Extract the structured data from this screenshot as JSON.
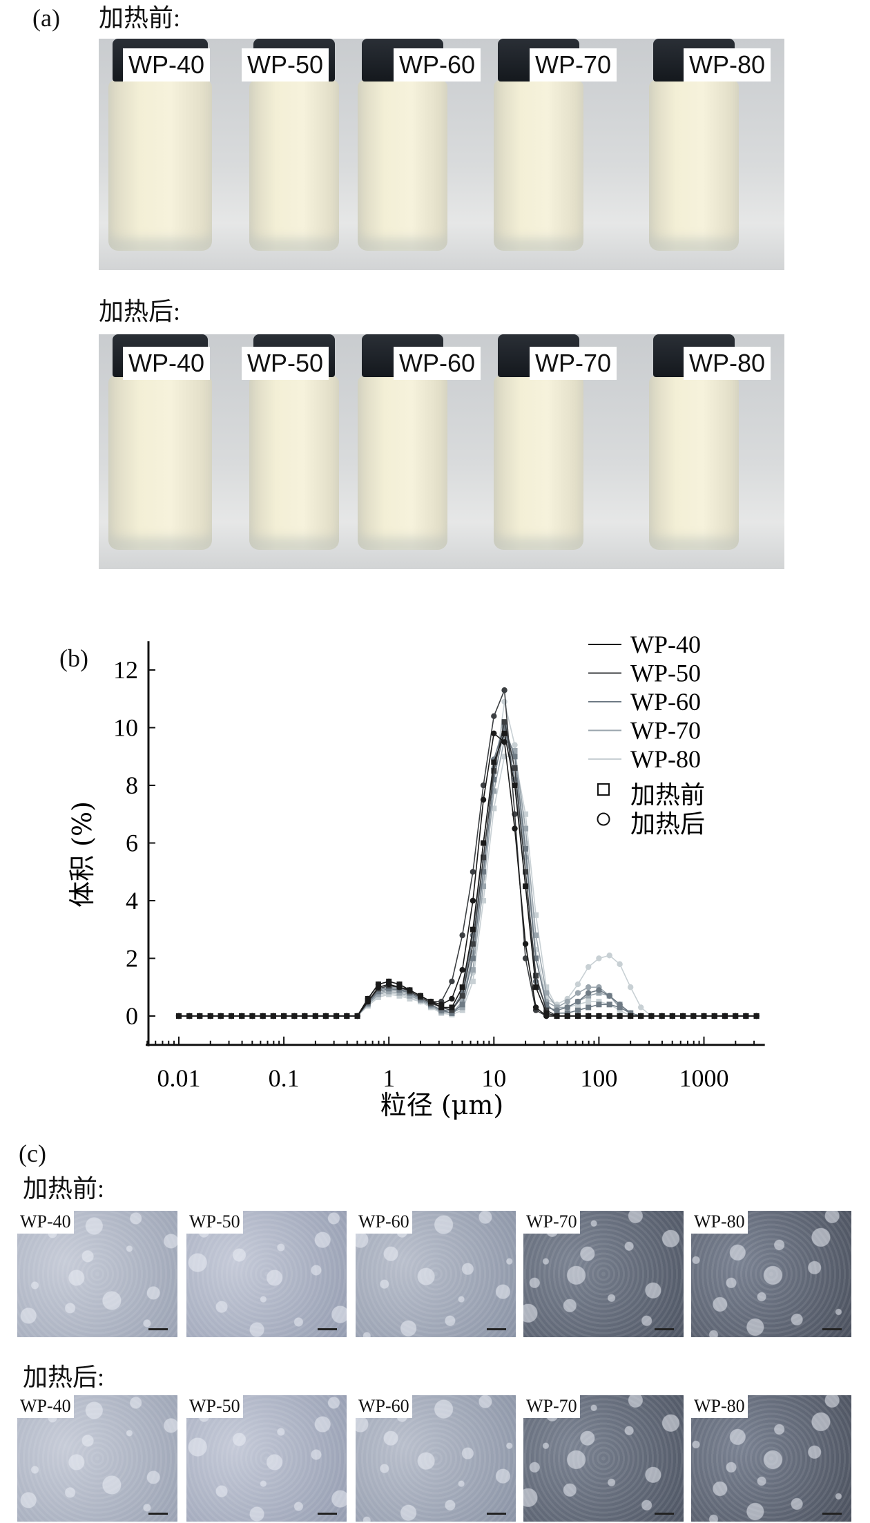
{
  "panel_a": {
    "label": "(a)",
    "before_title": "加热前:",
    "after_title": "加热后:",
    "samples": [
      "WP-40",
      "WP-50",
      "WP-60",
      "WP-70",
      "WP-80"
    ]
  },
  "panel_b": {
    "label": "(b)"
  },
  "panel_c": {
    "label": "(c)",
    "before_title": "加热前:",
    "after_title": "加热后:",
    "samples": [
      "WP-40",
      "WP-50",
      "WP-60",
      "WP-70",
      "WP-80"
    ]
  },
  "chart_data": {
    "type": "line",
    "title": "",
    "xlabel": "粒径 (μm)",
    "ylabel": "体积 (%)",
    "xscale": "log",
    "xlim": [
      0.005,
      3800
    ],
    "ylim": [
      -1,
      13
    ],
    "xticks": [
      "0.01",
      "0.1",
      "1",
      "10",
      "100",
      "1000"
    ],
    "xtick_values": [
      0.01,
      0.1,
      1,
      10,
      100,
      1000
    ],
    "yticks": [
      "0",
      "2",
      "4",
      "6",
      "8",
      "10",
      "12"
    ],
    "ytick_values": [
      0,
      2,
      4,
      6,
      8,
      10,
      12
    ],
    "grid": false,
    "legend": {
      "position": "top-right",
      "entries": [
        "WP-40",
        "WP-50",
        "WP-60",
        "WP-70",
        "WP-80"
      ],
      "marker_entries": [
        {
          "marker": "square",
          "label": "加热前"
        },
        {
          "marker": "circle",
          "label": "加热后"
        }
      ]
    },
    "x": [
      0.01,
      0.0126,
      0.0158,
      0.02,
      0.0251,
      0.0316,
      0.0398,
      0.0501,
      0.0631,
      0.0794,
      0.1,
      0.126,
      0.158,
      0.2,
      0.251,
      0.316,
      0.398,
      0.501,
      0.631,
      0.794,
      1,
      1.26,
      1.58,
      2,
      2.51,
      3.16,
      3.98,
      5.01,
      6.31,
      7.94,
      10,
      12.6,
      15.8,
      20,
      25.1,
      31.6,
      39.8,
      50.1,
      63.1,
      79.4,
      100,
      126,
      158,
      200,
      251,
      316,
      398,
      501,
      631,
      794,
      1000,
      1259,
      1585,
      1995,
      2512,
      3162
    ],
    "series": [
      {
        "name": "WP-40",
        "state": "加热前",
        "marker": "square",
        "color": "#1a1a1a",
        "values": [
          0,
          0,
          0,
          0,
          0,
          0,
          0,
          0,
          0,
          0,
          0,
          0,
          0,
          0,
          0,
          0,
          0,
          0,
          0.6,
          1.1,
          1.2,
          1.1,
          0.9,
          0.7,
          0.5,
          0.3,
          0.3,
          1.0,
          3.0,
          6.0,
          8.8,
          9.8,
          8.0,
          4.5,
          1.0,
          0.1,
          0,
          0,
          0,
          0,
          0,
          0,
          0,
          0,
          0,
          0,
          0,
          0,
          0,
          0,
          0,
          0,
          0,
          0,
          0,
          0
        ]
      },
      {
        "name": "WP-40",
        "state": "加热后",
        "marker": "circle",
        "color": "#1a1a1a",
        "values": [
          0,
          0,
          0,
          0,
          0,
          0,
          0,
          0,
          0,
          0,
          0,
          0,
          0,
          0,
          0,
          0,
          0,
          0,
          0.5,
          1.0,
          1.1,
          1.0,
          0.9,
          0.7,
          0.5,
          0.4,
          0.6,
          1.6,
          4.0,
          7.5,
          9.8,
          9.5,
          6.5,
          2.5,
          0.3,
          0,
          0,
          0,
          0,
          0,
          0,
          0,
          0,
          0,
          0,
          0,
          0,
          0,
          0,
          0,
          0,
          0,
          0,
          0,
          0,
          0
        ]
      },
      {
        "name": "WP-50",
        "state": "加热前",
        "marker": "square",
        "color": "#3c3f42",
        "values": [
          0,
          0,
          0,
          0,
          0,
          0,
          0,
          0,
          0,
          0,
          0,
          0,
          0,
          0,
          0,
          0,
          0,
          0,
          0.5,
          0.95,
          1.05,
          1.0,
          0.85,
          0.65,
          0.45,
          0.3,
          0.2,
          0.7,
          2.5,
          5.5,
          8.5,
          10.2,
          8.6,
          5.0,
          1.4,
          0.2,
          0,
          0,
          0,
          0,
          0,
          0,
          0,
          0,
          0,
          0,
          0,
          0,
          0,
          0,
          0,
          0,
          0,
          0,
          0,
          0
        ]
      },
      {
        "name": "WP-50",
        "state": "加热后",
        "marker": "circle",
        "color": "#3c3f42",
        "values": [
          0,
          0,
          0,
          0,
          0,
          0,
          0,
          0,
          0,
          0,
          0,
          0,
          0,
          0,
          0,
          0,
          0,
          0,
          0.6,
          1.1,
          1.2,
          1.1,
          0.9,
          0.7,
          0.5,
          0.5,
          1.2,
          2.8,
          5.0,
          8.0,
          10.4,
          11.3,
          7.0,
          2.0,
          0.2,
          0,
          0,
          0,
          0,
          0,
          0,
          0,
          0,
          0,
          0,
          0,
          0,
          0,
          0,
          0,
          0,
          0,
          0,
          0,
          0,
          0
        ]
      },
      {
        "name": "WP-60",
        "state": "加热前",
        "marker": "square",
        "color": "#6e7a84",
        "values": [
          0,
          0,
          0,
          0,
          0,
          0,
          0,
          0,
          0,
          0,
          0,
          0,
          0,
          0,
          0,
          0,
          0,
          0,
          0.45,
          0.85,
          0.95,
          0.9,
          0.8,
          0.6,
          0.4,
          0.2,
          0.1,
          0.4,
          2.0,
          5.0,
          8.2,
          10.0,
          9.0,
          5.8,
          2.0,
          0.4,
          0.1,
          0.1,
          0.2,
          0.3,
          0.4,
          0.4,
          0.3,
          0.1,
          0,
          0,
          0,
          0,
          0,
          0,
          0,
          0,
          0,
          0,
          0,
          0
        ]
      },
      {
        "name": "WP-60",
        "state": "加热后",
        "marker": "circle",
        "color": "#6e7a84",
        "values": [
          0,
          0,
          0,
          0,
          0,
          0,
          0,
          0,
          0,
          0,
          0,
          0,
          0,
          0,
          0,
          0,
          0,
          0,
          0.5,
          0.9,
          1.0,
          0.95,
          0.8,
          0.6,
          0.4,
          0.2,
          0.2,
          0.8,
          2.8,
          6.0,
          8.9,
          10.1,
          8.2,
          4.5,
          1.2,
          0.3,
          0.2,
          0.3,
          0.5,
          0.8,
          0.9,
          0.7,
          0.4,
          0.1,
          0,
          0,
          0,
          0,
          0,
          0,
          0,
          0,
          0,
          0,
          0,
          0
        ]
      },
      {
        "name": "WP-70",
        "state": "加热前",
        "marker": "square",
        "color": "#9aa5ad",
        "values": [
          0,
          0,
          0,
          0,
          0,
          0,
          0,
          0,
          0,
          0,
          0,
          0,
          0,
          0,
          0,
          0,
          0,
          0,
          0.4,
          0.75,
          0.85,
          0.8,
          0.7,
          0.55,
          0.35,
          0.15,
          0.1,
          0.3,
          1.6,
          4.5,
          7.8,
          9.6,
          9.2,
          6.5,
          2.8,
          0.8,
          0.3,
          0.3,
          0.5,
          0.7,
          0.8,
          0.7,
          0.4,
          0.1,
          0,
          0,
          0,
          0,
          0,
          0,
          0,
          0,
          0,
          0,
          0,
          0
        ]
      },
      {
        "name": "WP-70",
        "state": "加热后",
        "marker": "circle",
        "color": "#9aa5ad",
        "values": [
          0,
          0,
          0,
          0,
          0,
          0,
          0,
          0,
          0,
          0,
          0,
          0,
          0,
          0,
          0,
          0,
          0,
          0,
          0.45,
          0.8,
          0.9,
          0.85,
          0.75,
          0.55,
          0.35,
          0.2,
          0.1,
          0.5,
          2.2,
          5.4,
          8.6,
          10.0,
          8.6,
          5.5,
          2.0,
          0.5,
          0.3,
          0.5,
          0.8,
          1.0,
          1.0,
          0.7,
          0.3,
          0.1,
          0,
          0,
          0,
          0,
          0,
          0,
          0,
          0,
          0,
          0,
          0,
          0
        ]
      },
      {
        "name": "WP-80",
        "state": "加热前",
        "marker": "square",
        "color": "#c8d0d4",
        "values": [
          0,
          0,
          0,
          0,
          0,
          0,
          0,
          0,
          0,
          0,
          0,
          0,
          0,
          0,
          0,
          0,
          0,
          0,
          0.35,
          0.65,
          0.75,
          0.7,
          0.6,
          0.5,
          0.3,
          0.1,
          0.05,
          0.2,
          1.2,
          4.0,
          7.2,
          9.0,
          9.0,
          7.0,
          3.5,
          1.0,
          0.3,
          0.3,
          0.4,
          0.5,
          0.5,
          0.4,
          0.2,
          0,
          0,
          0,
          0,
          0,
          0,
          0,
          0,
          0,
          0,
          0,
          0,
          0
        ]
      },
      {
        "name": "WP-80",
        "state": "加热后",
        "marker": "circle",
        "color": "#c8d0d4",
        "values": [
          0,
          0,
          0,
          0,
          0,
          0,
          0,
          0,
          0,
          0,
          0,
          0,
          0,
          0,
          0,
          0,
          0,
          0,
          0.4,
          0.7,
          0.8,
          0.75,
          0.65,
          0.5,
          0.3,
          0.15,
          0.1,
          0.3,
          1.5,
          4.8,
          8.2,
          10.9,
          9.4,
          6.0,
          2.3,
          0.6,
          0.4,
          0.6,
          1.1,
          1.7,
          2.0,
          2.1,
          1.8,
          1.0,
          0.3,
          0,
          0,
          0,
          0,
          0,
          0,
          0,
          0,
          0,
          0,
          0
        ]
      }
    ]
  }
}
